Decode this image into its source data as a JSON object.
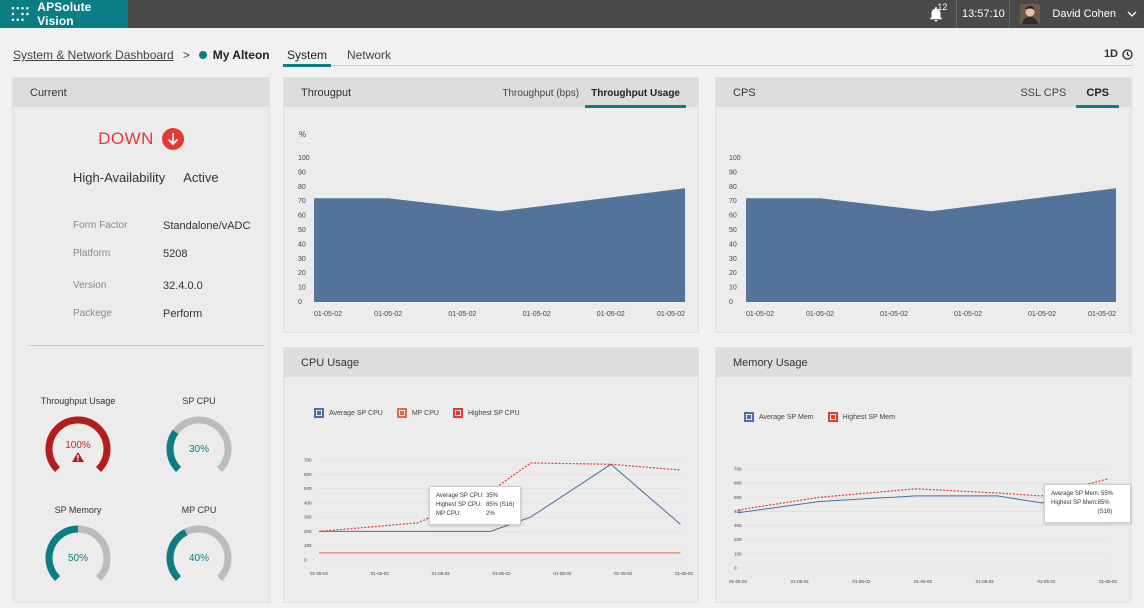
{
  "app": {
    "name": "APSolute Vision"
  },
  "topbar": {
    "notification_count": "12",
    "time": "13:57:10",
    "user": "David Cohen"
  },
  "breadcrumb": {
    "parent": "System & Network Dashboard",
    "separator": ">",
    "current": "My Alteon"
  },
  "view_tabs": [
    {
      "label": "System",
      "active": true
    },
    {
      "label": "Network",
      "active": false
    }
  ],
  "time_range": "1D",
  "current": {
    "title": "Current",
    "status": "DOWN",
    "ha_label": "High-Availability",
    "ha_value": "Active",
    "properties": [
      {
        "label": "Form Factor",
        "value": "Standalone/vADC"
      },
      {
        "label": "Platform",
        "value": "5208"
      },
      {
        "label": "Version",
        "value": "32.4.0.0"
      },
      {
        "label": "Packege",
        "value": "Perform"
      }
    ],
    "gauges": [
      {
        "title": "Throughput Usage",
        "value": 100,
        "text": "100%",
        "color": "#b71c1c",
        "alert": true
      },
      {
        "title": "SP CPU",
        "value": 30,
        "text": "30%",
        "color": "#0c7d82",
        "alert": false
      },
      {
        "title": "SP Memory",
        "value": 50,
        "text": "50%",
        "color": "#0c7d82",
        "alert": false
      },
      {
        "title": "MP CPU",
        "value": 40,
        "text": "40%",
        "color": "#0c7d82",
        "alert": false
      }
    ]
  },
  "throughput": {
    "title": "Througput",
    "tabs": [
      {
        "label": "Throughput (bps)",
        "active": false
      },
      {
        "label": "Throughput Usage",
        "active": true
      }
    ],
    "unit": "%"
  },
  "cps": {
    "title": "CPS",
    "tabs": [
      {
        "label": "SSL CPS",
        "active": false
      },
      {
        "label": "CPS",
        "active": true
      }
    ]
  },
  "cpu": {
    "title": "CPU Usage",
    "legend": [
      {
        "label": "Average SP CPU",
        "color": "#4a6fa0"
      },
      {
        "label": "MP  CPU",
        "color": "#e66a40"
      },
      {
        "label": "Highest SP CPU",
        "color": "#e53935"
      }
    ],
    "tooltip": [
      {
        "k": "Average SP CPU:",
        "v": "35%"
      },
      {
        "k": "Highest SP CPU:",
        "v": "85% (S16)"
      },
      {
        "k": "MP CPU:",
        "v": "2%"
      }
    ]
  },
  "memory": {
    "title": "Memory Usage",
    "legend": [
      {
        "label": "Average SP Mem",
        "color": "#4a6fa0"
      },
      {
        "label": "Highest SP Mem",
        "color": "#e53935"
      }
    ],
    "tooltip": [
      {
        "k": "Average SP Mem:",
        "v": "55%"
      },
      {
        "k": "Highest SP Mem:",
        "v": "85% (S16)"
      }
    ]
  },
  "chart_data": [
    {
      "id": "throughput-usage",
      "type": "area",
      "title": "Througput",
      "ylabel": "%",
      "ylim": [
        0,
        100
      ],
      "y_ticks": [
        0,
        10,
        20,
        30,
        40,
        50,
        60,
        70,
        80,
        90,
        100
      ],
      "categories": [
        "01-05-02",
        "01-05-02",
        "01-05-02",
        "01-05-02",
        "01-05-02",
        "01-05-02"
      ],
      "x": [
        0,
        0.2,
        0.5,
        0.75,
        1.0
      ],
      "values": [
        72,
        72,
        63,
        71,
        79
      ],
      "color": "#53739b",
      "grid": false
    },
    {
      "id": "cps",
      "type": "area",
      "title": "CPS",
      "ylim": [
        0,
        100
      ],
      "y_ticks": [
        0,
        10,
        20,
        30,
        40,
        50,
        60,
        70,
        80,
        90,
        100
      ],
      "categories": [
        "01-05-02",
        "01-05-02",
        "01-05-02",
        "01-05-02",
        "01-05-02",
        "01-05-02"
      ],
      "x": [
        0,
        0.2,
        0.5,
        0.75,
        1.0
      ],
      "values": [
        72,
        72,
        63,
        71,
        79
      ],
      "color": "#53739b",
      "grid": false
    },
    {
      "id": "cpu-usage",
      "type": "line",
      "title": "CPU Usage",
      "ylim": [
        0,
        700
      ],
      "y_ticks": [
        0,
        100,
        200,
        300,
        400,
        500,
        600,
        700
      ],
      "categories": [
        "01-05-02",
        "01-05-02",
        "01-05-02",
        "01-05-02",
        "01-05-02",
        "01-05-02",
        "01-05-02"
      ],
      "x": [
        0,
        0.27,
        0.47,
        0.58,
        0.8,
        0.99
      ],
      "series": [
        {
          "name": "Average SP CPU",
          "color": "#4a6fa0",
          "dash": false,
          "values": [
            200,
            200,
            200,
            300,
            670,
            250
          ]
        },
        {
          "name": "MP  CPU",
          "color": "#e66a40",
          "dash": false,
          "values": [
            50,
            50,
            50,
            50,
            50,
            50
          ]
        },
        {
          "name": "Highest SP CPU",
          "color": "#e53935",
          "dash": true,
          "values": [
            200,
            260,
            480,
            680,
            670,
            630
          ]
        }
      ],
      "grid": true
    },
    {
      "id": "memory-usage",
      "type": "line",
      "title": "Memory Usage",
      "ylim": [
        0,
        700
      ],
      "y_ticks": [
        0,
        100,
        200,
        300,
        400,
        500,
        600,
        700
      ],
      "categories": [
        "01-05-02",
        "01-05-02",
        "01-05-02",
        "01-05-02",
        "01-05-02",
        "01-05-02",
        "01-05-02"
      ],
      "x": [
        0.0,
        0.22,
        0.48,
        0.7,
        0.82,
        1.0
      ],
      "series": [
        {
          "name": "Average SP Mem",
          "color": "#4a6fa0",
          "dash": false,
          "values": [
            390,
            470,
            510,
            510,
            460,
            540
          ]
        },
        {
          "name": "Highest SP Mem",
          "color": "#e53935",
          "dash": true,
          "values": [
            410,
            500,
            560,
            530,
            510,
            630
          ]
        }
      ],
      "grid": true
    }
  ]
}
